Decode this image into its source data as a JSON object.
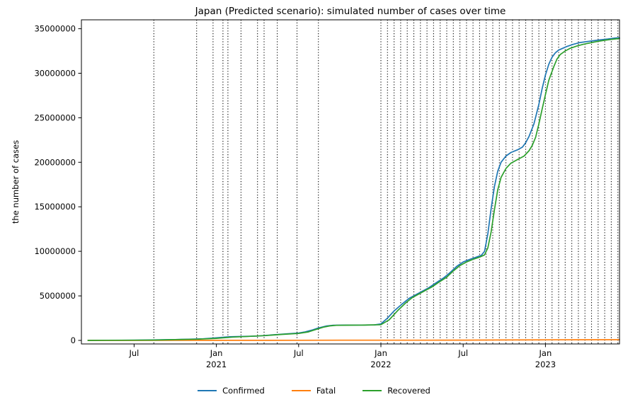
{
  "window": {
    "type": "static-chart-figure"
  },
  "chart_data": {
    "type": "line",
    "title": "Japan (Predicted scenario): simulated number of cases over time",
    "xlabel": "",
    "ylabel": "the number of cases",
    "x_unit": "decimal-year",
    "xlim": [
      2020.18,
      2023.45
    ],
    "ylim": [
      -400000,
      36000000
    ],
    "grid": false,
    "legend_position": "bottom-center",
    "yticks": [
      0,
      5000000,
      10000000,
      15000000,
      20000000,
      25000000,
      30000000,
      35000000
    ],
    "xticks": [
      {
        "x": 2020.5,
        "label": "Jul",
        "year": ""
      },
      {
        "x": 2021.0,
        "label": "Jan",
        "year": "2021"
      },
      {
        "x": 2021.5,
        "label": "Jul",
        "year": ""
      },
      {
        "x": 2022.0,
        "label": "Jan",
        "year": "2022"
      },
      {
        "x": 2022.5,
        "label": "Jul",
        "year": ""
      },
      {
        "x": 2023.0,
        "label": "Jan",
        "year": "2023"
      }
    ],
    "phase_separator_style": "black-dotted-vertical-lines",
    "phase_lines": [
      2020.62,
      2020.88,
      2020.98,
      2021.04,
      2021.07,
      2021.15,
      2021.25,
      2021.29,
      2021.37,
      2021.49,
      2021.62,
      2022.0,
      2022.04,
      2022.08,
      2022.12,
      2022.16,
      2022.2,
      2022.24,
      2022.28,
      2022.32,
      2022.36,
      2022.4,
      2022.44,
      2022.48,
      2022.52,
      2022.56,
      2022.6,
      2022.64,
      2022.68,
      2022.72,
      2022.76,
      2022.8,
      2022.84,
      2022.88,
      2022.92,
      2022.96,
      2023.0,
      2023.04,
      2023.08,
      2023.12,
      2023.16,
      2023.2,
      2023.24,
      2023.28,
      2023.32,
      2023.36,
      2023.4,
      2023.44
    ],
    "series": [
      {
        "name": "Confirmed",
        "color": "#1f77b4",
        "points": [
          [
            2020.22,
            2000
          ],
          [
            2020.3,
            14000
          ],
          [
            2020.42,
            17000
          ],
          [
            2020.5,
            21000
          ],
          [
            2020.58,
            40000
          ],
          [
            2020.67,
            67000
          ],
          [
            2020.75,
            95000
          ],
          [
            2020.83,
            125000
          ],
          [
            2020.92,
            180000
          ],
          [
            2021.0,
            290000
          ],
          [
            2021.08,
            400000
          ],
          [
            2021.17,
            440000
          ],
          [
            2021.25,
            490000
          ],
          [
            2021.33,
            600000
          ],
          [
            2021.42,
            730000
          ],
          [
            2021.5,
            820000
          ],
          [
            2021.54,
            950000
          ],
          [
            2021.58,
            1150000
          ],
          [
            2021.62,
            1400000
          ],
          [
            2021.67,
            1620000
          ],
          [
            2021.71,
            1700000
          ],
          [
            2021.79,
            1720000
          ],
          [
            2021.88,
            1725000
          ],
          [
            2021.96,
            1740000
          ],
          [
            2022.0,
            1850000
          ],
          [
            2022.04,
            2500000
          ],
          [
            2022.08,
            3300000
          ],
          [
            2022.13,
            4100000
          ],
          [
            2022.17,
            4700000
          ],
          [
            2022.21,
            5100000
          ],
          [
            2022.25,
            5500000
          ],
          [
            2022.29,
            5900000
          ],
          [
            2022.33,
            6400000
          ],
          [
            2022.38,
            7000000
          ],
          [
            2022.42,
            7600000
          ],
          [
            2022.46,
            8300000
          ],
          [
            2022.5,
            8800000
          ],
          [
            2022.54,
            9100000
          ],
          [
            2022.58,
            9350000
          ],
          [
            2022.61,
            9550000
          ],
          [
            2022.63,
            10000000
          ],
          [
            2022.65,
            12000000
          ],
          [
            2022.67,
            14800000
          ],
          [
            2022.69,
            17300000
          ],
          [
            2022.71,
            19000000
          ],
          [
            2022.73,
            20000000
          ],
          [
            2022.76,
            20700000
          ],
          [
            2022.79,
            21100000
          ],
          [
            2022.83,
            21400000
          ],
          [
            2022.86,
            21700000
          ],
          [
            2022.88,
            22200000
          ],
          [
            2022.9,
            22900000
          ],
          [
            2022.93,
            24300000
          ],
          [
            2022.96,
            26500000
          ],
          [
            2022.98,
            28300000
          ],
          [
            2023.0,
            29800000
          ],
          [
            2023.02,
            31000000
          ],
          [
            2023.04,
            31800000
          ],
          [
            2023.06,
            32300000
          ],
          [
            2023.08,
            32600000
          ],
          [
            2023.13,
            33000000
          ],
          [
            2023.17,
            33250000
          ],
          [
            2023.21,
            33450000
          ],
          [
            2023.25,
            33550000
          ],
          [
            2023.29,
            33650000
          ],
          [
            2023.33,
            33750000
          ],
          [
            2023.38,
            33850000
          ],
          [
            2023.42,
            33950000
          ],
          [
            2023.45,
            34000000
          ]
        ]
      },
      {
        "name": "Fatal",
        "color": "#ff7f0e",
        "points": [
          [
            2020.22,
            0
          ],
          [
            2020.5,
            1000
          ],
          [
            2020.75,
            1700
          ],
          [
            2021.0,
            3500
          ],
          [
            2021.25,
            9000
          ],
          [
            2021.5,
            15000
          ],
          [
            2021.75,
            17500
          ],
          [
            2022.0,
            18400
          ],
          [
            2022.25,
            25000
          ],
          [
            2022.5,
            31000
          ],
          [
            2022.75,
            45000
          ],
          [
            2023.0,
            57000
          ],
          [
            2023.2,
            72000
          ],
          [
            2023.45,
            74500
          ]
        ]
      },
      {
        "name": "Recovered",
        "color": "#2ca02c",
        "points": [
          [
            2020.22,
            500
          ],
          [
            2020.33,
            12000
          ],
          [
            2020.5,
            18000
          ],
          [
            2020.63,
            35000
          ],
          [
            2020.75,
            82000
          ],
          [
            2020.88,
            130000
          ],
          [
            2021.0,
            230000
          ],
          [
            2021.1,
            370000
          ],
          [
            2021.2,
            450000
          ],
          [
            2021.3,
            540000
          ],
          [
            2021.4,
            670000
          ],
          [
            2021.5,
            780000
          ],
          [
            2021.56,
            950000
          ],
          [
            2021.6,
            1200000
          ],
          [
            2021.65,
            1480000
          ],
          [
            2021.69,
            1630000
          ],
          [
            2021.73,
            1690000
          ],
          [
            2021.81,
            1710000
          ],
          [
            2021.9,
            1715000
          ],
          [
            2022.0,
            1760000
          ],
          [
            2022.05,
            2300000
          ],
          [
            2022.1,
            3300000
          ],
          [
            2022.15,
            4200000
          ],
          [
            2022.19,
            4800000
          ],
          [
            2022.23,
            5200000
          ],
          [
            2022.27,
            5600000
          ],
          [
            2022.31,
            6000000
          ],
          [
            2022.35,
            6500000
          ],
          [
            2022.4,
            7100000
          ],
          [
            2022.44,
            7800000
          ],
          [
            2022.48,
            8400000
          ],
          [
            2022.52,
            8800000
          ],
          [
            2022.56,
            9100000
          ],
          [
            2022.6,
            9350000
          ],
          [
            2022.63,
            9600000
          ],
          [
            2022.65,
            10400000
          ],
          [
            2022.67,
            12200000
          ],
          [
            2022.69,
            14700000
          ],
          [
            2022.71,
            16900000
          ],
          [
            2022.73,
            18300000
          ],
          [
            2022.76,
            19300000
          ],
          [
            2022.79,
            19900000
          ],
          [
            2022.83,
            20300000
          ],
          [
            2022.87,
            20700000
          ],
          [
            2022.9,
            21300000
          ],
          [
            2022.92,
            21900000
          ],
          [
            2022.94,
            22800000
          ],
          [
            2022.96,
            24300000
          ],
          [
            2022.98,
            26000000
          ],
          [
            2023.0,
            27600000
          ],
          [
            2023.02,
            29200000
          ],
          [
            2023.05,
            30700000
          ],
          [
            2023.07,
            31600000
          ],
          [
            2023.09,
            32100000
          ],
          [
            2023.12,
            32500000
          ],
          [
            2023.15,
            32800000
          ],
          [
            2023.19,
            33050000
          ],
          [
            2023.23,
            33250000
          ],
          [
            2023.27,
            33400000
          ],
          [
            2023.31,
            33550000
          ],
          [
            2023.36,
            33700000
          ],
          [
            2023.4,
            33800000
          ],
          [
            2023.45,
            33900000
          ]
        ]
      }
    ]
  }
}
